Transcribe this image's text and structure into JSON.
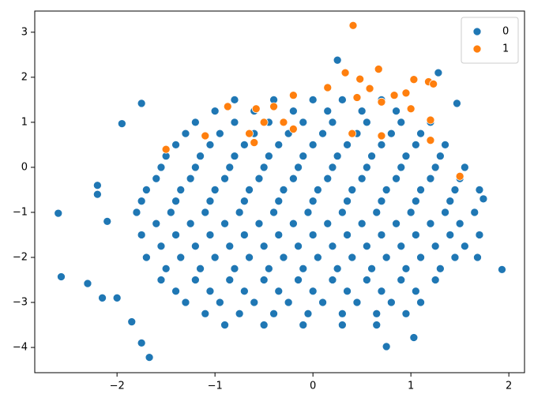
{
  "chart_data": {
    "type": "scatter",
    "xlim": [
      -2.84,
      2.16
    ],
    "ylim": [
      -4.56,
      3.47
    ],
    "xticks": [
      {
        "value": -2,
        "label": "−2"
      },
      {
        "value": -1,
        "label": "−1"
      },
      0,
      1,
      2
    ],
    "yticks": [
      {
        "value": -4,
        "label": "−4"
      },
      {
        "value": -3,
        "label": "−3"
      },
      {
        "value": -2,
        "label": "−2"
      },
      {
        "value": -1,
        "label": "−1"
      },
      0,
      1,
      2,
      3
    ],
    "legend": "upper right",
    "series": [
      {
        "name": "0",
        "color": "#1f77b4",
        "x": [
          -0.8,
          -0.4,
          0,
          0.3,
          0.7,
          -1.0,
          -0.6,
          -0.2,
          0.15,
          0.5,
          0.85,
          -1.2,
          -0.8,
          -0.45,
          -0.1,
          0.2,
          0.55,
          0.9,
          1.2,
          -1.3,
          -0.95,
          -0.6,
          -0.25,
          0.1,
          0.45,
          0.8,
          1.1,
          -1.4,
          -1.05,
          -0.7,
          -0.35,
          0,
          0.35,
          0.7,
          1.05,
          1.35,
          -1.5,
          -1.15,
          -0.8,
          -0.45,
          -0.1,
          0.25,
          0.6,
          0.95,
          1.3,
          -1.55,
          -1.2,
          -0.85,
          -0.5,
          -0.15,
          0.2,
          0.55,
          0.9,
          1.25,
          1.55,
          -1.6,
          -1.25,
          -0.9,
          -0.55,
          -0.2,
          0.15,
          0.5,
          0.85,
          1.2,
          1.5,
          -1.7,
          -1.35,
          -1.0,
          -0.65,
          -0.3,
          0.05,
          0.4,
          0.75,
          1.1,
          1.45,
          1.7,
          -1.75,
          -1.4,
          -1.05,
          -0.7,
          -0.35,
          0,
          0.35,
          0.7,
          1.05,
          1.4,
          -1.8,
          -1.45,
          -1.1,
          -0.75,
          -0.4,
          -0.05,
          0.3,
          0.65,
          1.0,
          1.35,
          1.65,
          -1.6,
          -1.25,
          -0.9,
          -0.55,
          -0.2,
          0.15,
          0.5,
          0.85,
          1.2,
          1.5,
          -1.75,
          -1.4,
          -1.05,
          -0.7,
          -0.35,
          0,
          0.35,
          0.7,
          1.05,
          1.4,
          1.7,
          -1.55,
          -1.2,
          -0.85,
          -0.5,
          -0.15,
          0.2,
          0.55,
          0.9,
          1.25,
          1.55,
          -1.7,
          -1.35,
          -1.0,
          -0.65,
          -0.3,
          0.05,
          0.4,
          0.75,
          1.1,
          1.45,
          -1.5,
          -1.15,
          -0.8,
          -0.45,
          -0.1,
          0.25,
          0.6,
          0.95,
          1.3,
          -1.55,
          -1.2,
          -0.85,
          -0.5,
          -0.15,
          0.2,
          0.55,
          0.9,
          1.25,
          -1.4,
          -1.05,
          -0.7,
          -0.35,
          0,
          0.35,
          0.7,
          1.05,
          -1.3,
          -0.95,
          -0.6,
          -0.25,
          0.1,
          0.45,
          0.8,
          1.1,
          -1.1,
          -0.75,
          -0.4,
          -0.05,
          0.3,
          0.65,
          0.95,
          -0.9,
          -0.5,
          -0.1,
          0.3,
          0.65,
          -2.6,
          -2.57,
          -2.3,
          1.93,
          -1.67,
          -1.75,
          -1.85,
          0.25,
          1.03,
          0.75,
          -2.2,
          -2.2,
          -2.1,
          -1.95,
          -1.75,
          1.28,
          1.47,
          1.74,
          1.68,
          -2.0,
          -2.15
        ],
        "values": [
          1.5,
          1.5,
          1.5,
          1.5,
          1.5,
          1.25,
          1.25,
          1.25,
          1.25,
          1.25,
          1.25,
          1.0,
          1.0,
          1.0,
          1.0,
          1.0,
          1.0,
          1.0,
          1.0,
          0.75,
          0.75,
          0.75,
          0.75,
          0.75,
          0.75,
          0.75,
          0.75,
          0.5,
          0.5,
          0.5,
          0.5,
          0.5,
          0.5,
          0.5,
          0.5,
          0.5,
          0.25,
          0.25,
          0.25,
          0.25,
          0.25,
          0.25,
          0.25,
          0.25,
          0.25,
          0,
          0,
          0,
          0,
          0,
          0,
          0,
          0,
          0,
          0,
          -0.25,
          -0.25,
          -0.25,
          -0.25,
          -0.25,
          -0.25,
          -0.25,
          -0.25,
          -0.25,
          -0.25,
          -0.5,
          -0.5,
          -0.5,
          -0.5,
          -0.5,
          -0.5,
          -0.5,
          -0.5,
          -0.5,
          -0.5,
          -0.5,
          -0.75,
          -0.75,
          -0.75,
          -0.75,
          -0.75,
          -0.75,
          -0.75,
          -0.75,
          -0.75,
          -0.75,
          -1,
          -1,
          -1,
          -1,
          -1,
          -1,
          -1,
          -1,
          -1,
          -1,
          -1,
          -1.25,
          -1.25,
          -1.25,
          -1.25,
          -1.25,
          -1.25,
          -1.25,
          -1.25,
          -1.25,
          -1.25,
          -1.5,
          -1.5,
          -1.5,
          -1.5,
          -1.5,
          -1.5,
          -1.5,
          -1.5,
          -1.5,
          -1.5,
          -1.5,
          -1.75,
          -1.75,
          -1.75,
          -1.75,
          -1.75,
          -1.75,
          -1.75,
          -1.75,
          -1.75,
          -1.75,
          -2,
          -2,
          -2,
          -2,
          -2,
          -2,
          -2,
          -2,
          -2,
          -2,
          -2.25,
          -2.25,
          -2.25,
          -2.25,
          -2.25,
          -2.25,
          -2.25,
          -2.25,
          -2.25,
          -2.5,
          -2.5,
          -2.5,
          -2.5,
          -2.5,
          -2.5,
          -2.5,
          -2.5,
          -2.5,
          -2.75,
          -2.75,
          -2.75,
          -2.75,
          -2.75,
          -2.75,
          -2.75,
          -2.75,
          -3,
          -3,
          -3,
          -3,
          -3,
          -3,
          -3,
          -3,
          -3.25,
          -3.25,
          -3.25,
          -3.25,
          -3.25,
          -3.25,
          -3.25,
          -3.5,
          -3.5,
          -3.5,
          -3.5,
          -3.5,
          -1.02,
          -2.43,
          -2.58,
          -2.27,
          -4.22,
          -3.9,
          -3.43,
          2.38,
          -3.78,
          -3.98,
          -0.4,
          -0.6,
          -1.2,
          0.97,
          1.42,
          2.1,
          1.42,
          -0.7,
          -2.0,
          -2.9,
          -2.9
        ]
      },
      {
        "name": "1",
        "color": "#ff7f0e",
        "x": [
          0.41,
          0.67,
          0.33,
          1.03,
          0.83,
          1.18,
          0.48,
          1.23,
          1.0,
          1.2,
          -0.87,
          -0.58,
          -0.4,
          -0.3,
          -0.65,
          -0.6,
          -1.5,
          -1.1,
          0.15,
          0.45,
          0.7,
          0.58,
          0.4,
          0.7,
          1.2,
          1.5,
          -0.2,
          -0.5,
          0.95,
          -0.2
        ],
        "values": [
          3.15,
          2.18,
          2.1,
          1.95,
          1.6,
          1.9,
          1.96,
          1.85,
          1.3,
          1.05,
          1.35,
          1.3,
          1.35,
          1.0,
          0.75,
          0.55,
          0.4,
          0.7,
          1.77,
          1.55,
          1.45,
          1.75,
          0.75,
          0.7,
          0.6,
          -0.2,
          0.85,
          1.0,
          1.65,
          1.6
        ]
      }
    ]
  }
}
